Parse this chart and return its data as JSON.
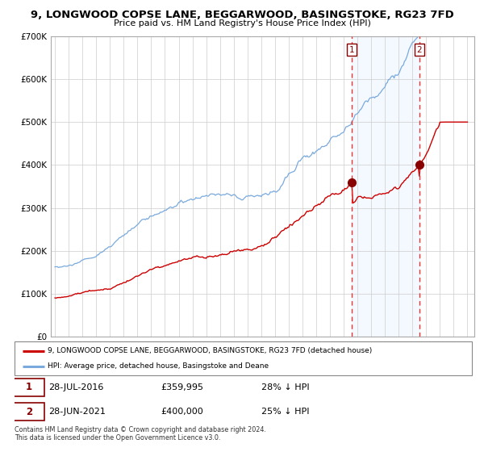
{
  "title": "9, LONGWOOD COPSE LANE, BEGGARWOOD, BASINGSTOKE, RG23 7FD",
  "subtitle": "Price paid vs. HM Land Registry's House Price Index (HPI)",
  "legend_line1": "9, LONGWOOD COPSE LANE, BEGGARWOOD, BASINGSTOKE, RG23 7FD (detached house)",
  "legend_line2": "HPI: Average price, detached house, Basingstoke and Deane",
  "annotation1_date": "28-JUL-2016",
  "annotation1_price": "£359,995",
  "annotation1_hpi": "28% ↓ HPI",
  "annotation2_date": "28-JUN-2021",
  "annotation2_price": "£400,000",
  "annotation2_hpi": "25% ↓ HPI",
  "footer": "Contains HM Land Registry data © Crown copyright and database right 2024.\nThis data is licensed under the Open Government Licence v3.0.",
  "hpi_line_color": "#7aaadd",
  "red_line_color": "#cc0000",
  "marker_color": "#880000",
  "vline_color": "#ee3333",
  "shade_color": "#ddeeff",
  "ylim": [
    0,
    700000
  ],
  "yticks": [
    0,
    100000,
    200000,
    300000,
    400000,
    500000,
    600000,
    700000
  ],
  "sale1_year": 2016.57,
  "sale2_year": 2021.49,
  "sale1_price": 359995,
  "sale2_price": 400000
}
